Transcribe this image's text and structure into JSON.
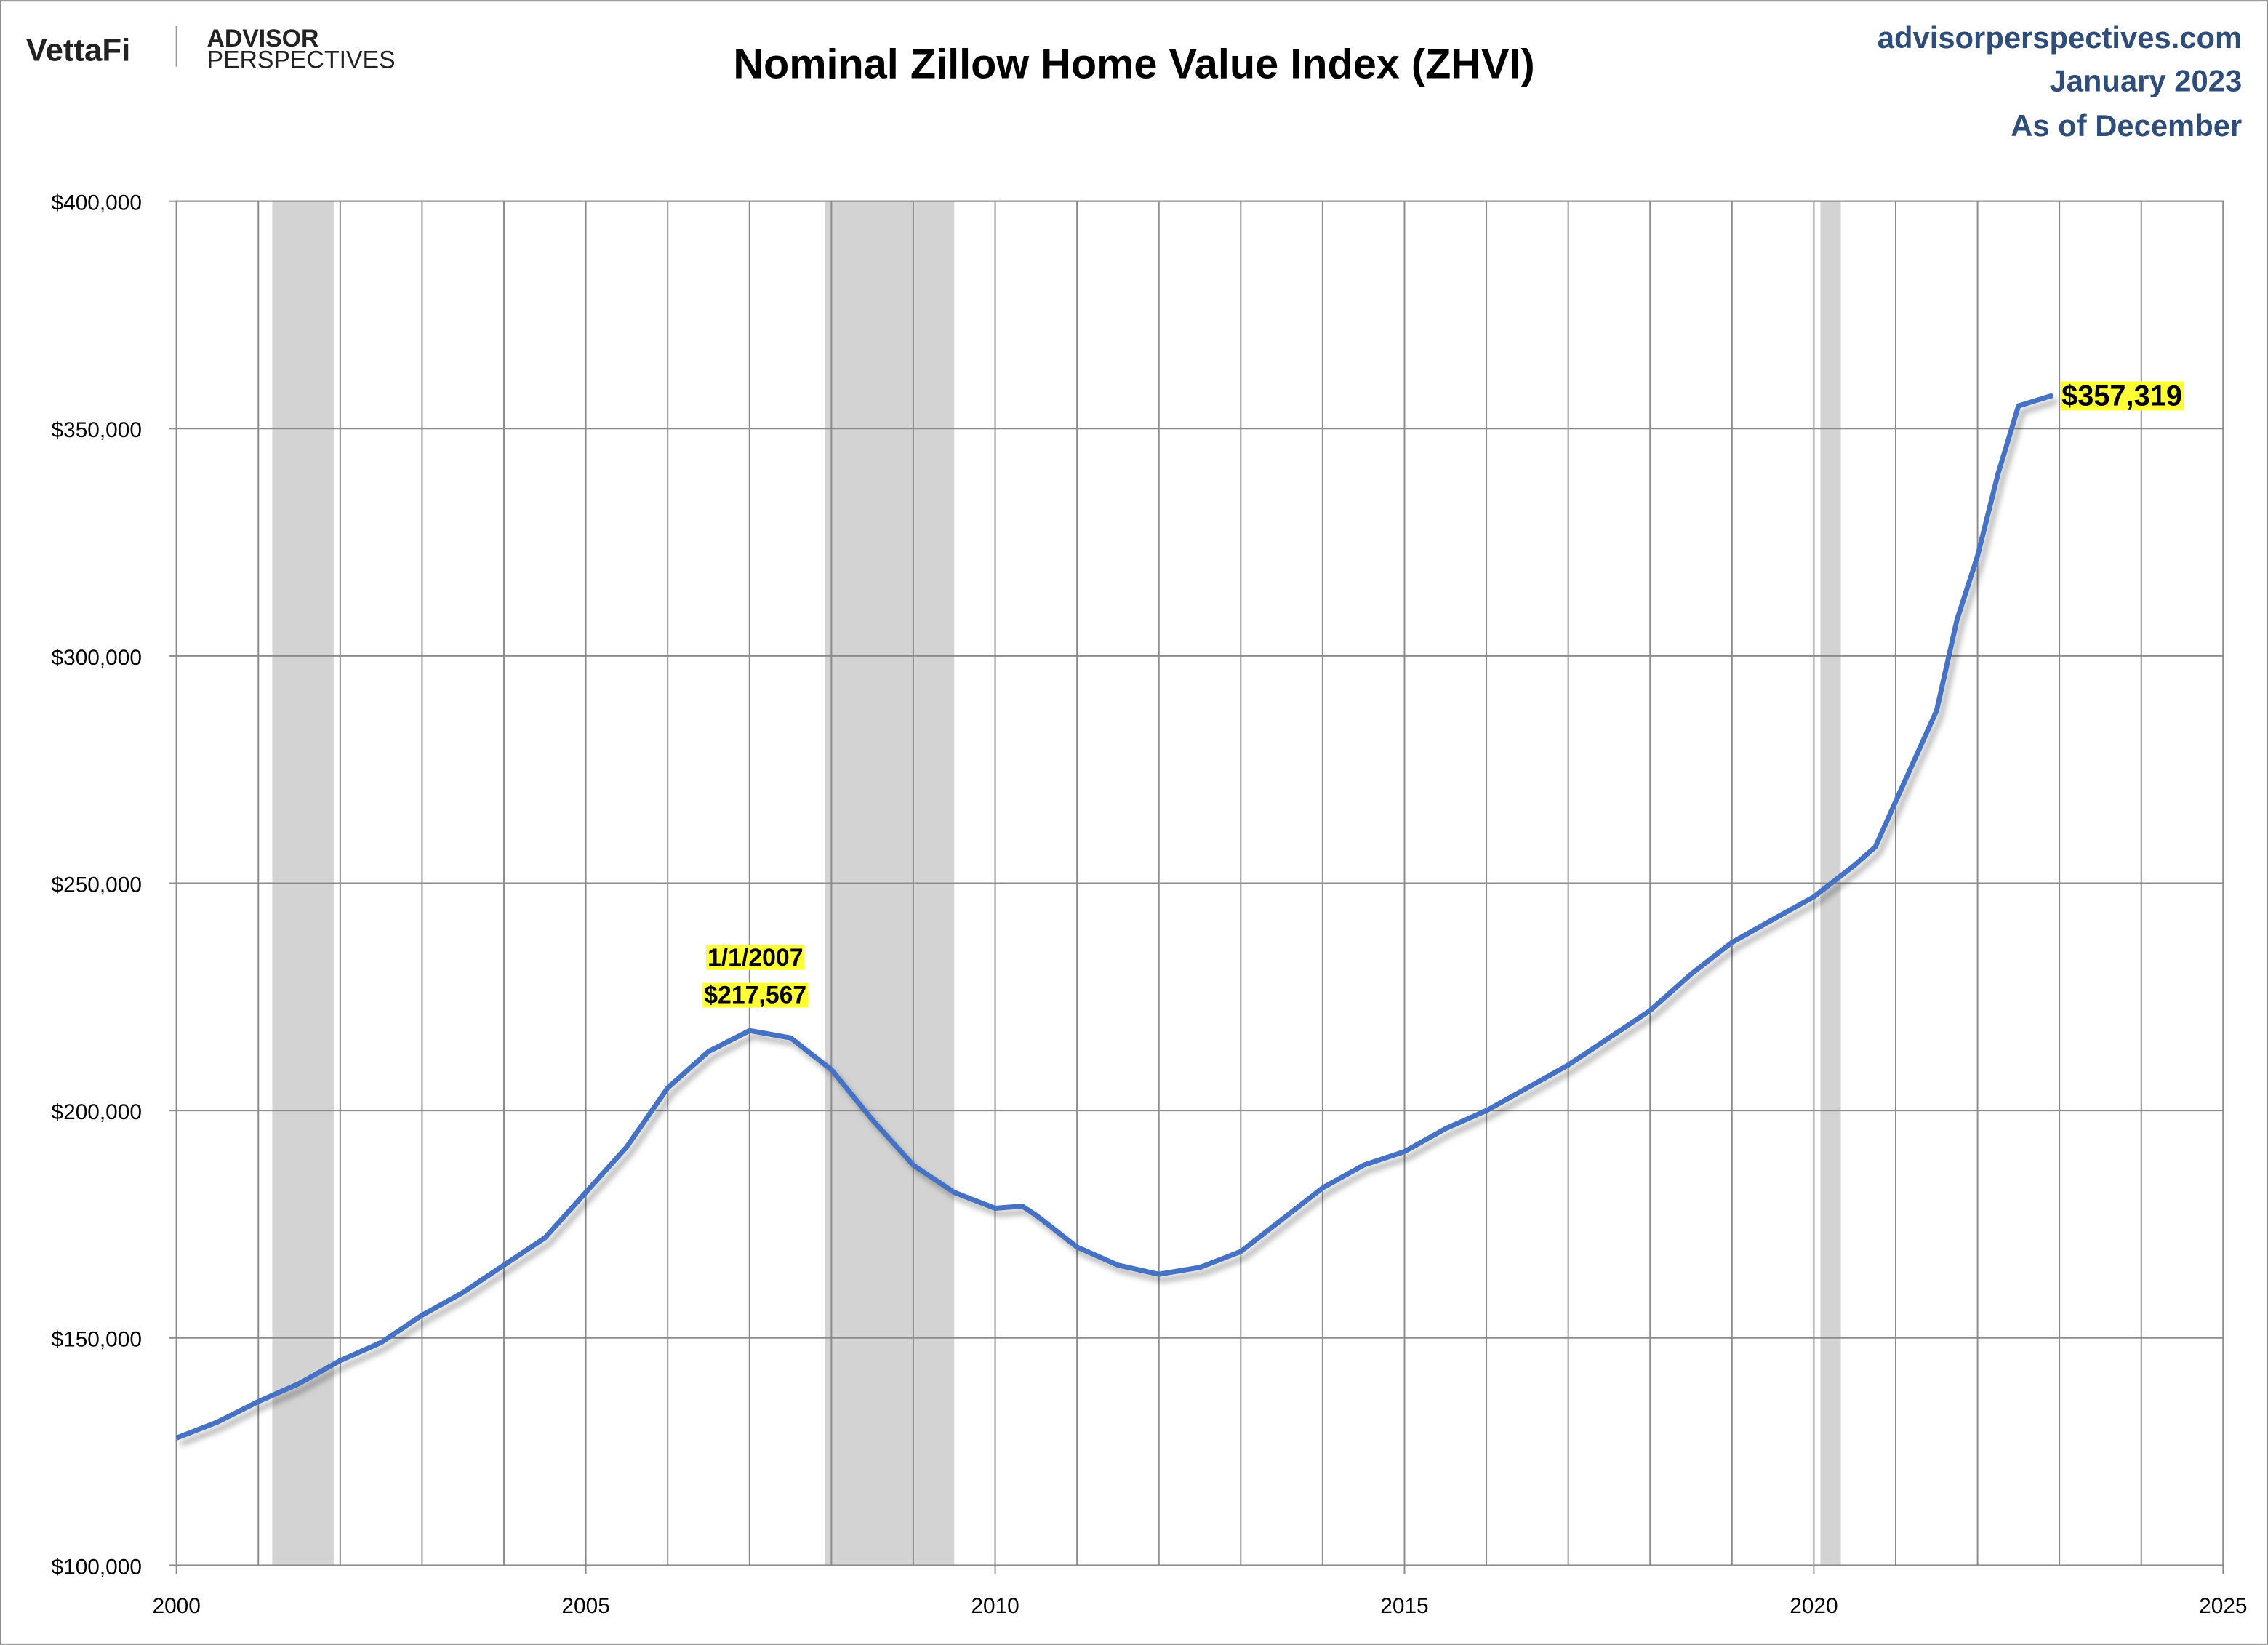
{
  "header": {
    "logo": "VettaFi",
    "brand_top": "ADVISOR",
    "brand_bottom": "PERSPECTIVES",
    "source": "advisorperspectives.com",
    "date": "January 2023",
    "note": "As of December"
  },
  "chart_data": {
    "type": "line",
    "title": "Nominal Zillow Home Value Index (ZHVI)",
    "x": [
      2000.0,
      2000.5,
      2001.0,
      2001.5,
      2002.0,
      2002.5,
      2003.0,
      2003.5,
      2004.0,
      2004.5,
      2005.0,
      2005.5,
      2006.0,
      2006.5,
      2007.0,
      2007.5,
      2008.0,
      2008.5,
      2009.0,
      2009.5,
      2010.0,
      2010.33,
      2010.5,
      2011.0,
      2011.5,
      2012.0,
      2012.5,
      2013.0,
      2013.5,
      2014.0,
      2014.5,
      2015.0,
      2015.5,
      2016.0,
      2016.5,
      2017.0,
      2017.5,
      2018.0,
      2018.5,
      2019.0,
      2019.5,
      2020.0,
      2020.5,
      2020.75,
      2021.0,
      2021.5,
      2021.75,
      2022.0,
      2022.25,
      2022.5,
      2022.92
    ],
    "series": [
      {
        "name": "ZHVI",
        "color": "#4472c4",
        "values": [
          128000,
          131500,
          136000,
          140000,
          145000,
          149000,
          155000,
          160000,
          166000,
          172000,
          182000,
          192000,
          205000,
          213000,
          217567,
          216000,
          209000,
          198000,
          188000,
          182000,
          178500,
          179000,
          177000,
          170000,
          166000,
          164000,
          165500,
          169000,
          176000,
          183000,
          188000,
          191000,
          196000,
          200000,
          205000,
          210000,
          216000,
          222000,
          230000,
          237000,
          242000,
          247000,
          254000,
          258000,
          268000,
          288000,
          308000,
          322000,
          340000,
          355000,
          357319
        ]
      }
    ],
    "annotations": [
      {
        "lines": [
          "1/1/2007",
          "$217,567"
        ],
        "x": 2007.0,
        "value": 217567
      },
      {
        "lines": [
          "$357,319"
        ],
        "x": 2022.92,
        "value": 357319
      }
    ],
    "recessions": [
      [
        2001.17,
        2001.92
      ],
      [
        2007.92,
        2009.5
      ],
      [
        2020.08,
        2020.33
      ]
    ],
    "recession_color": "#d3d3d3",
    "xlim": [
      2000,
      2025
    ],
    "xticks": [
      2000,
      2005,
      2010,
      2015,
      2020,
      2025
    ],
    "xgrid": [
      2000,
      2001,
      2002,
      2003,
      2004,
      2005,
      2006,
      2007,
      2008,
      2009,
      2010,
      2011,
      2012,
      2013,
      2014,
      2015,
      2016,
      2017,
      2018,
      2019,
      2020,
      2021,
      2022,
      2023,
      2024,
      2025
    ],
    "ylim": [
      100000,
      400000
    ],
    "yticks": [
      {
        "value": 100000,
        "label": "$100,000"
      },
      {
        "value": 150000,
        "label": "$150,000"
      },
      {
        "value": 200000,
        "label": "$200,000"
      },
      {
        "value": 250000,
        "label": "$250,000"
      },
      {
        "value": 300000,
        "label": "$300,000"
      },
      {
        "value": 350000,
        "label": "$350,000"
      },
      {
        "value": 400000,
        "label": "$400,000"
      }
    ],
    "grid": true
  }
}
